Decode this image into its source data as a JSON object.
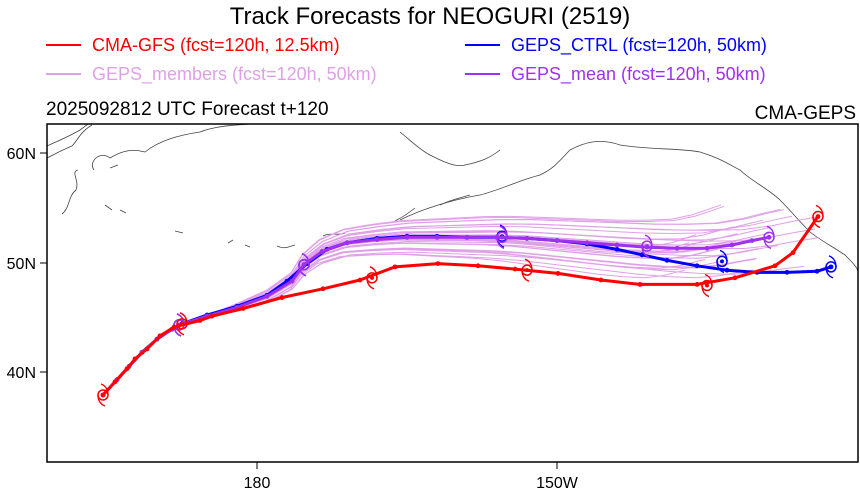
{
  "chart_data": {
    "type": "line",
    "title": "Track Forecasts for NEOGURI (2519)",
    "subtitle_left": "2025092812 UTC Forecast t+120",
    "subtitle_right": "CMA-GEPS",
    "legend": [
      {
        "label": "CMA-GFS (fcst=120h, 12.5km)",
        "color": "#ff0000",
        "position": "top-left"
      },
      {
        "label": "GEPS_CTRL (fcst=120h, 50km)",
        "color": "#0000ff",
        "position": "top-right"
      },
      {
        "label": "GEPS_members (fcst=120h, 50km)",
        "color": "#e0a0e8",
        "position": "top-left"
      },
      {
        "label": "GEPS_mean (fcst=120h, 50km)",
        "color": "#a030f0",
        "position": "top-right"
      }
    ],
    "xaxis": {
      "range_lon_east": [
        159,
        240.1
      ],
      "ticks": [
        {
          "lon": 180,
          "label": "180"
        },
        {
          "lon": 210,
          "label": "150W"
        }
      ]
    },
    "yaxis": {
      "range_lat": [
        31.8,
        62.6
      ],
      "ticks": [
        {
          "lat": 60,
          "label": "60N"
        },
        {
          "lat": 50,
          "label": "50N"
        },
        {
          "lat": 40,
          "label": "40N"
        }
      ]
    },
    "series": [
      {
        "name": "CMA-GFS",
        "color": "#ff0000",
        "points": [
          [
            164.6,
            37.9
          ],
          [
            165.8,
            39.1
          ],
          [
            167.0,
            40.3
          ],
          [
            167.8,
            41.2
          ],
          [
            169.0,
            42.1
          ],
          [
            170.3,
            43.3
          ],
          [
            171.7,
            44.1
          ],
          [
            174.3,
            44.7
          ],
          [
            175.5,
            45.1
          ],
          [
            178.6,
            45.8
          ],
          [
            182.5,
            46.8
          ],
          [
            186.6,
            47.6
          ],
          [
            190.3,
            48.4
          ],
          [
            193.8,
            49.6
          ],
          [
            198.1,
            49.9
          ],
          [
            202.1,
            49.7
          ],
          [
            205.8,
            49.4
          ],
          [
            210.1,
            49.0
          ],
          [
            214.4,
            48.4
          ],
          [
            218.3,
            48.0
          ],
          [
            224.0,
            48.0
          ],
          [
            227.8,
            48.6
          ],
          [
            231.8,
            49.7
          ],
          [
            233.6,
            50.9
          ],
          [
            236.1,
            54.2
          ]
        ],
        "cyclone_markers": [
          [
            164.6,
            37.9
          ],
          [
            172.5,
            44.4
          ],
          [
            191.5,
            48.6
          ],
          [
            207.0,
            49.3
          ],
          [
            225.0,
            47.9
          ],
          [
            236.1,
            54.2
          ]
        ]
      },
      {
        "name": "GEPS_CTRL",
        "color": "#0000ff",
        "points": [
          [
            164.6,
            37.9
          ],
          [
            166.0,
            39.3
          ],
          [
            167.2,
            40.5
          ],
          [
            168.5,
            41.8
          ],
          [
            170.0,
            43.0
          ],
          [
            171.5,
            43.9
          ],
          [
            172.5,
            44.4
          ],
          [
            175.0,
            45.2
          ],
          [
            178.0,
            46.0
          ],
          [
            181.0,
            47.0
          ],
          [
            183.0,
            48.3
          ],
          [
            185.0,
            49.9
          ],
          [
            187.0,
            51.2
          ],
          [
            189.0,
            51.8
          ],
          [
            192.0,
            52.2
          ],
          [
            195.0,
            52.4
          ],
          [
            198.0,
            52.4
          ],
          [
            201.0,
            52.3
          ],
          [
            204.0,
            52.3
          ],
          [
            207.0,
            52.2
          ],
          [
            210.0,
            52.0
          ],
          [
            213.0,
            51.7
          ],
          [
            216.0,
            51.2
          ],
          [
            218.5,
            50.7
          ],
          [
            221.0,
            50.2
          ],
          [
            224.0,
            49.7
          ],
          [
            227.0,
            49.3
          ],
          [
            230.0,
            49.1
          ],
          [
            233.0,
            49.1
          ],
          [
            236.0,
            49.2
          ],
          [
            237.4,
            49.6
          ]
        ],
        "cyclone_markers": [
          [
            172.2,
            44.3
          ],
          [
            184.7,
            49.8
          ],
          [
            204.5,
            52.4
          ],
          [
            226.5,
            50.1
          ],
          [
            237.4,
            49.6
          ]
        ]
      },
      {
        "name": "GEPS_mean",
        "color": "#a030f0",
        "points": [
          [
            164.6,
            37.9
          ],
          [
            166.0,
            39.3
          ],
          [
            167.2,
            40.5
          ],
          [
            168.5,
            41.8
          ],
          [
            170.0,
            43.0
          ],
          [
            171.5,
            43.9
          ],
          [
            172.2,
            44.3
          ],
          [
            175.0,
            45.1
          ],
          [
            178.0,
            45.9
          ],
          [
            181.0,
            46.9
          ],
          [
            183.5,
            48.3
          ],
          [
            184.7,
            49.8
          ],
          [
            186.5,
            51.0
          ],
          [
            189.0,
            51.8
          ],
          [
            192.0,
            52.1
          ],
          [
            195.0,
            52.3
          ],
          [
            198.0,
            52.3
          ],
          [
            201.0,
            52.3
          ],
          [
            204.0,
            52.3
          ],
          [
            207.0,
            52.2
          ],
          [
            210.0,
            52.0
          ],
          [
            213.0,
            51.8
          ],
          [
            216.0,
            51.6
          ],
          [
            219.0,
            51.4
          ],
          [
            222.0,
            51.3
          ],
          [
            225.0,
            51.3
          ],
          [
            227.5,
            51.6
          ],
          [
            229.5,
            52.0
          ],
          [
            231.2,
            52.3
          ]
        ],
        "cyclone_markers": [
          [
            172.2,
            44.3
          ],
          [
            184.7,
            49.8
          ],
          [
            204.5,
            52.3
          ],
          [
            219.0,
            51.5
          ],
          [
            231.2,
            52.3
          ]
        ]
      }
    ],
    "members_summary": "~30 GEPS ensemble member tracks spread between ~48N and ~56N east of 185E, ending between 215E and 233E"
  }
}
